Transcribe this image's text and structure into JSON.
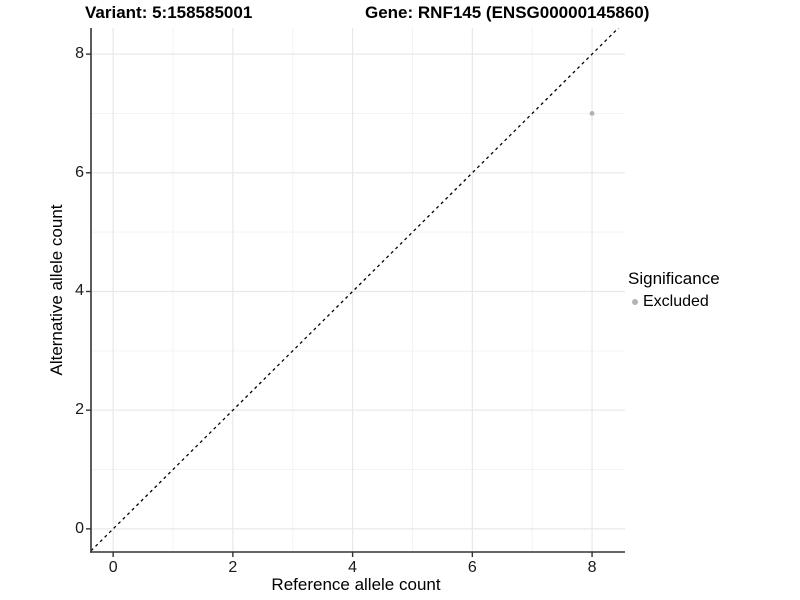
{
  "figure": {
    "titles": {
      "variant": "Variant: 5:158585001",
      "gene": "Gene: RNF145 (ENSG00000145860)"
    }
  },
  "axes": {
    "x_label": "Reference allele count",
    "y_label": "Alternative allele count"
  },
  "legend": {
    "title": "Significance",
    "items": [
      {
        "label": "Excluded",
        "color": "#b3b3b3"
      }
    ]
  },
  "chart_data": {
    "type": "scatter",
    "title": "Variant: 5:158585001    Gene: RNF145 (ENSG00000145860)",
    "xlabel": "Reference allele count",
    "ylabel": "Alternative allele count",
    "xlim": [
      -0.37,
      8.55
    ],
    "ylim": [
      -0.39,
      8.44
    ],
    "x_ticks": [
      0,
      2,
      4,
      6,
      8
    ],
    "y_ticks": [
      0,
      2,
      4,
      6,
      8
    ],
    "x_minor_ticks": [
      1,
      3,
      5,
      7
    ],
    "y_minor_ticks": [
      1,
      3,
      5,
      7
    ],
    "grid": true,
    "legend_position": "right",
    "series": [
      {
        "name": "Excluded",
        "points": [
          {
            "x": 8,
            "y": 7
          }
        ],
        "color": "#b3b3b3",
        "point_radius": 2.4
      }
    ],
    "reference_line": {
      "kind": "identity",
      "slope": 1,
      "intercept": 0,
      "style": "dashed",
      "color": "#000000"
    },
    "colors": {
      "background": "#ffffff",
      "grid_major": "#e8e8e8",
      "grid_minor": "#f3f3f3",
      "axis_line": "#333333",
      "tick_mark": "#333333"
    }
  }
}
